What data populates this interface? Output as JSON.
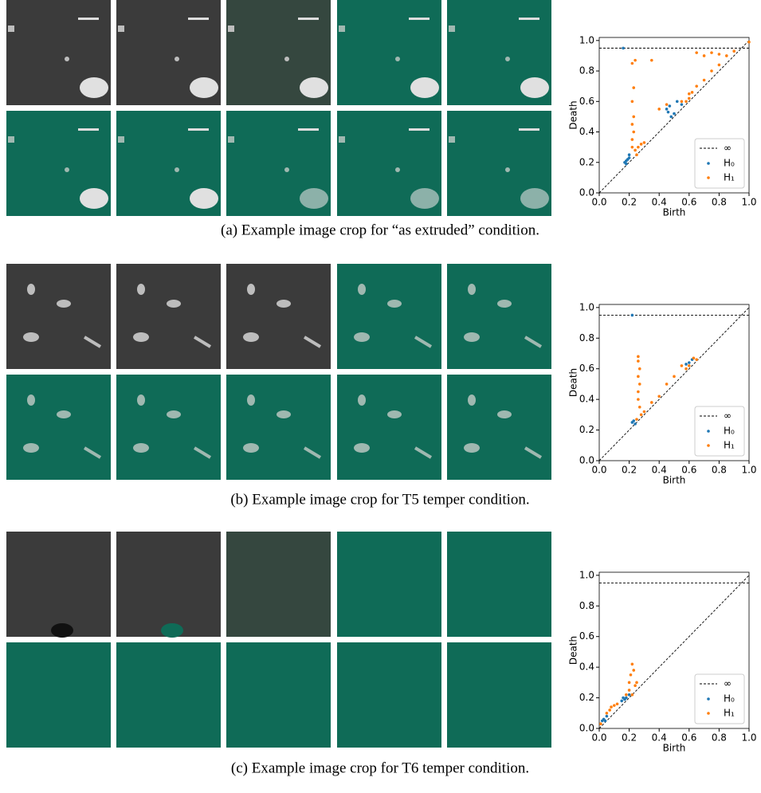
{
  "chart_data": [
    {
      "type": "scatter",
      "caption": "(a) Example image crop for “as extruded” condition.",
      "xlabel": "Birth",
      "ylabel": "Death",
      "xlim": [
        0,
        1.0
      ],
      "ylim": [
        0,
        1.02
      ],
      "xticks": [
        {
          "value": 0,
          "label": "0.0"
        },
        {
          "value": 0.2,
          "label": "0.2"
        },
        {
          "value": 0.4,
          "label": "0.4"
        },
        {
          "value": 0.6,
          "label": "0.6"
        },
        {
          "value": 0.8,
          "label": "0.8"
        },
        {
          "value": 1.0,
          "label": "1.0"
        }
      ],
      "yticks": [
        {
          "value": 0,
          "label": "0.0"
        },
        {
          "value": 0.2,
          "label": "0.2"
        },
        {
          "value": 0.4,
          "label": "0.4"
        },
        {
          "value": 0.6,
          "label": "0.6"
        },
        {
          "value": 0.8,
          "label": "0.8"
        },
        {
          "value": 1.0,
          "label": "1.0"
        }
      ],
      "legend": "lower right",
      "inf_line": {
        "name": "∞",
        "y": 0.95
      },
      "series": [
        {
          "name": "H₀",
          "color": "#1f77b4",
          "x": [
            0.16,
            0.17,
            0.18,
            0.19,
            0.2,
            0.18,
            0.45,
            0.47,
            0.5,
            0.48,
            0.52,
            0.55,
            0.46,
            0.2
          ],
          "values": [
            0.95,
            0.2,
            0.21,
            0.22,
            0.23,
            0.19,
            0.55,
            0.57,
            0.52,
            0.5,
            0.6,
            0.58,
            0.53,
            0.25
          ]
        },
        {
          "name": "H₁",
          "color": "#ff7f0e",
          "x": [
            0.22,
            0.22,
            0.23,
            0.22,
            0.23,
            0.22,
            0.23,
            0.22,
            0.24,
            0.25,
            0.24,
            0.26,
            0.28,
            0.3,
            0.35,
            0.4,
            0.55,
            0.6,
            0.65,
            0.7,
            0.75,
            0.8,
            0.85,
            0.9,
            0.65,
            0.7,
            0.75,
            0.8,
            1.0,
            0.6,
            0.58,
            0.62,
            0.45
          ],
          "values": [
            0.3,
            0.35,
            0.4,
            0.45,
            0.5,
            0.6,
            0.69,
            0.85,
            0.87,
            0.25,
            0.28,
            0.3,
            0.32,
            0.33,
            0.87,
            0.55,
            0.6,
            0.65,
            0.7,
            0.74,
            0.8,
            0.84,
            0.9,
            0.93,
            0.92,
            0.9,
            0.92,
            0.91,
            0.99,
            0.62,
            0.6,
            0.66,
            0.58
          ]
        }
      ]
    },
    {
      "type": "scatter",
      "caption": "(b) Example image crop for T5 temper condition.",
      "xlabel": "Birth",
      "ylabel": "Death",
      "xlim": [
        0,
        1.0
      ],
      "ylim": [
        0,
        1.02
      ],
      "xticks": [
        {
          "value": 0,
          "label": "0.0"
        },
        {
          "value": 0.2,
          "label": "0.2"
        },
        {
          "value": 0.4,
          "label": "0.4"
        },
        {
          "value": 0.6,
          "label": "0.6"
        },
        {
          "value": 0.8,
          "label": "0.8"
        },
        {
          "value": 1.0,
          "label": "1.0"
        }
      ],
      "yticks": [
        {
          "value": 0,
          "label": "0.0"
        },
        {
          "value": 0.2,
          "label": "0.2"
        },
        {
          "value": 0.4,
          "label": "0.4"
        },
        {
          "value": 0.6,
          "label": "0.6"
        },
        {
          "value": 0.8,
          "label": "0.8"
        },
        {
          "value": 1.0,
          "label": "1.0"
        }
      ],
      "legend": "lower right",
      "inf_line": {
        "name": "∞",
        "y": 0.95
      },
      "series": [
        {
          "name": "H₀",
          "color": "#1f77b4",
          "x": [
            0.22,
            0.22,
            0.23,
            0.24,
            0.58,
            0.6,
            0.62
          ],
          "values": [
            0.95,
            0.25,
            0.26,
            0.24,
            0.63,
            0.64,
            0.66
          ]
        },
        {
          "name": "H₁",
          "color": "#ff7f0e",
          "x": [
            0.26,
            0.26,
            0.27,
            0.26,
            0.27,
            0.26,
            0.26,
            0.27,
            0.28,
            0.25,
            0.3,
            0.35,
            0.4,
            0.45,
            0.55,
            0.6,
            0.63,
            0.65,
            0.58,
            0.5
          ],
          "values": [
            0.68,
            0.65,
            0.6,
            0.55,
            0.5,
            0.45,
            0.4,
            0.35,
            0.3,
            0.27,
            0.32,
            0.38,
            0.42,
            0.5,
            0.62,
            0.62,
            0.67,
            0.66,
            0.6,
            0.55
          ]
        }
      ]
    },
    {
      "type": "scatter",
      "caption": "(c) Example image crop for T6 temper condition.",
      "xlabel": "Birth",
      "ylabel": "Death",
      "xlim": [
        0,
        1.0
      ],
      "ylim": [
        0,
        1.02
      ],
      "xticks": [
        {
          "value": 0,
          "label": "0.0"
        },
        {
          "value": 0.2,
          "label": "0.2"
        },
        {
          "value": 0.4,
          "label": "0.4"
        },
        {
          "value": 0.6,
          "label": "0.6"
        },
        {
          "value": 0.8,
          "label": "0.8"
        },
        {
          "value": 1.0,
          "label": "1.0"
        }
      ],
      "yticks": [
        {
          "value": 0,
          "label": "0.0"
        },
        {
          "value": 0.2,
          "label": "0.2"
        },
        {
          "value": 0.4,
          "label": "0.4"
        },
        {
          "value": 0.6,
          "label": "0.6"
        },
        {
          "value": 0.8,
          "label": "0.8"
        },
        {
          "value": 1.0,
          "label": "1.0"
        }
      ],
      "legend": "lower right",
      "inf_line": {
        "name": "∞",
        "y": 0.95
      },
      "series": [
        {
          "name": "H₀",
          "color": "#1f77b4",
          "x": [
            0.02,
            0.03,
            0.04,
            0.15,
            0.16,
            0.18,
            0.17,
            0.2,
            0.05
          ],
          "values": [
            0.05,
            0.06,
            0.05,
            0.18,
            0.2,
            0.2,
            0.19,
            0.22,
            0.08
          ]
        },
        {
          "name": "H₁",
          "color": "#ff7f0e",
          "x": [
            0.05,
            0.07,
            0.08,
            0.1,
            0.12,
            0.2,
            0.22,
            0.21,
            0.23,
            0.2,
            0.24,
            0.22,
            0.25,
            0.18,
            0.01
          ],
          "values": [
            0.1,
            0.12,
            0.14,
            0.15,
            0.16,
            0.3,
            0.42,
            0.35,
            0.38,
            0.25,
            0.28,
            0.22,
            0.3,
            0.22,
            0.03
          ]
        }
      ]
    }
  ]
}
